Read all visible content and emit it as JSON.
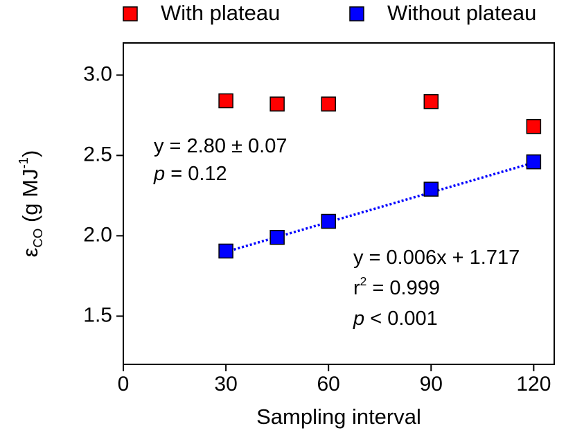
{
  "chart_data": {
    "type": "scatter",
    "x_label": "Sampling interval",
    "y_label": [
      {
        "text": "ε"
      },
      {
        "text": "CO",
        "sub": true
      },
      {
        "text": "  (g MJ"
      },
      {
        "text": "-1",
        "sup": true
      },
      {
        "text": ")"
      }
    ],
    "xlim": [
      0,
      126
    ],
    "ylim": [
      1.2,
      3.2
    ],
    "xticks": [
      0,
      30,
      60,
      90,
      120
    ],
    "yticks": [
      1.5,
      {
        "value": 2,
        "label": "2.0"
      },
      2.5,
      {
        "value": 3,
        "label": "3.0"
      }
    ],
    "series": [
      {
        "name": "With plateau",
        "color": "#ff0000",
        "x": [
          30,
          45,
          60,
          90,
          120
        ],
        "values": [
          2.84,
          2.82,
          2.82,
          2.835,
          2.68
        ]
      },
      {
        "name": "Without plateau",
        "color": "#0000ff",
        "x": [
          30,
          45,
          60,
          90,
          120
        ],
        "values": [
          1.905,
          1.99,
          2.09,
          2.29,
          2.46
        ]
      }
    ],
    "fit_line": {
      "color": "#0000ff",
      "x": [
        30,
        120
      ],
      "values": [
        1.9,
        2.455
      ]
    },
    "annotations": [
      {
        "color": "#ff0000",
        "lines": [
          [
            {
              "text": "y = 2.80 ± 0.07"
            }
          ],
          [
            {
              "text": "p",
              "italic": true
            },
            {
              "text": " = 0.12"
            }
          ]
        ]
      },
      {
        "color": "#0000ff",
        "lines": [
          [
            {
              "text": "y = 0.006x + 1.717"
            }
          ],
          [
            {
              "text": "r"
            },
            {
              "text": "2",
              "sup": true
            },
            {
              "text": " = 0.999"
            }
          ],
          [
            {
              "text": "p",
              "italic": true
            },
            {
              "text": " < 0.001"
            }
          ]
        ]
      }
    ],
    "legend": "top"
  }
}
